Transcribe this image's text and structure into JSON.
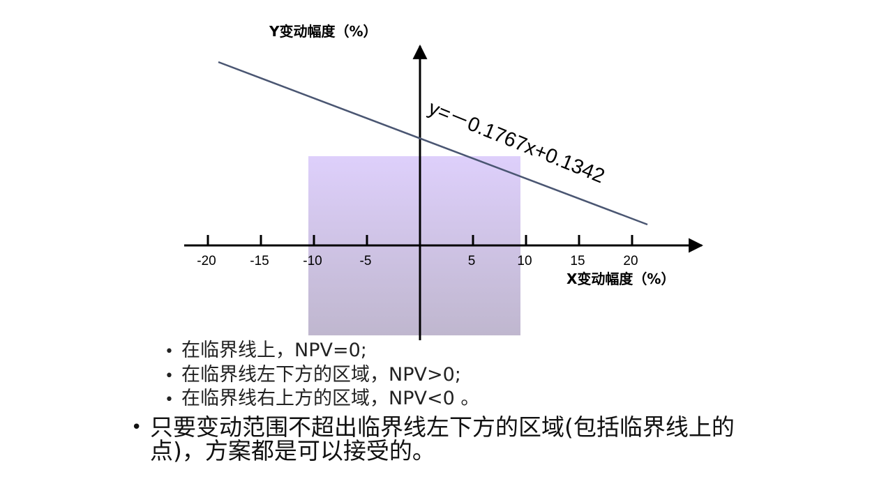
{
  "diagram": {
    "y_axis_label": "Y变动幅度（%）",
    "x_axis_label": "X变动幅度（%）",
    "equation_label": "y=－0.1767x+0.1342",
    "x_tick_labels": [
      "-20",
      "-15",
      "-10",
      "-5",
      "5",
      "10",
      "15",
      "20"
    ],
    "line": {
      "slope": -0.1767,
      "intercept": 0.1342,
      "color": "#4a5672"
    },
    "region": {
      "x_range": [
        -10,
        10
      ],
      "color_top": "#dccdfb",
      "color_bottom": "#bcb3cc"
    }
  },
  "bullets": {
    "items": [
      "在临界线上，NPV=0;",
      "在临界线左下方的区域，NPV>0;",
      "在临界线右上方的区域，NPV<0 。"
    ],
    "conclusion": "只要变动范围不超出临界线左下方的区域(包括临界线上的点)，方案都是可以接受的。"
  }
}
